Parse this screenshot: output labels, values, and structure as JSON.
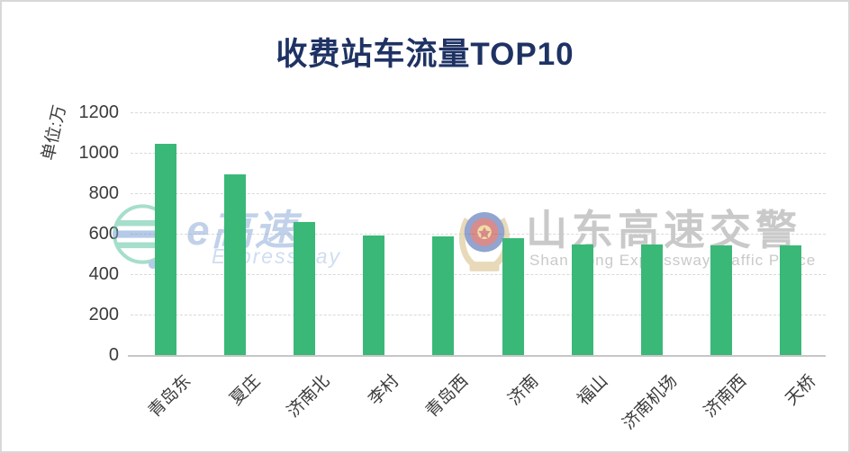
{
  "page": {
    "background": "#ffffff",
    "border_color": "#d8d8d8"
  },
  "chart_data": {
    "type": "bar",
    "title": "收费站车流量TOP10",
    "title_color": "#1e3263",
    "unit_label": "单位:万",
    "xlabel": "",
    "ylabel": "单位:万",
    "categories": [
      "青岛东",
      "夏庄",
      "济南北",
      "李村",
      "青岛西",
      "济南",
      "福山",
      "济南机场",
      "济南西",
      "天桥"
    ],
    "values": [
      1045,
      895,
      658,
      590,
      585,
      578,
      548,
      545,
      542,
      544
    ],
    "ylim": [
      0,
      1200
    ],
    "tick_step": 200,
    "y_tick_labels": [
      "1200",
      "1000",
      "800",
      "600",
      "400",
      "200",
      "0"
    ],
    "bar_color": "#3ab878",
    "grid": "horizontal-dashed",
    "legend_position": "none",
    "x_label_rotation_deg": -45
  },
  "watermarks": {
    "left_logo": {
      "icon": "e-expressway-logo",
      "text_cn": "e高速",
      "text_en": "Expressway"
    },
    "right_logo": {
      "icon": "police-badge",
      "text_cn": "山东高速交警",
      "text_en": "Shan Dong Expressway Traffic Police"
    }
  }
}
